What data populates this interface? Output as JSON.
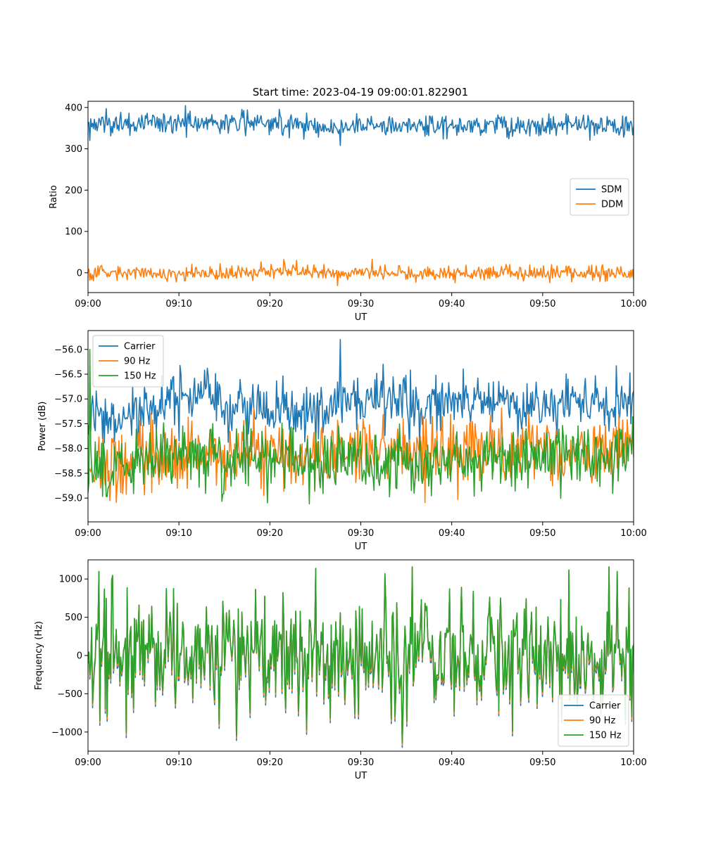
{
  "figure": {
    "title": "Start time: 2023-04-19 09:00:01.822901"
  },
  "chart_data": [
    {
      "type": "line",
      "title": "Start time: 2023-04-19 09:00:01.822901",
      "xlabel": "UT",
      "ylabel": "Ratio",
      "x_range": [
        "09:00",
        "10:00"
      ],
      "x_ticks": [
        "09:00",
        "09:10",
        "09:20",
        "09:30",
        "09:40",
        "09:50",
        "10:00"
      ],
      "ylim": [
        -48,
        415
      ],
      "y_ticks": [
        0,
        100,
        200,
        300,
        400
      ],
      "legend": "center-right",
      "grid": false,
      "series": [
        {
          "name": "SDM",
          "color": "#1f77b4",
          "x_minutes": [
            0,
            2.5,
            5,
            7.5,
            10,
            12.5,
            15,
            17.5,
            20,
            22.5,
            25,
            27.5,
            30,
            32.5,
            35,
            37.5,
            40,
            42.5,
            45,
            47.5,
            50,
            52.5,
            55,
            57.5,
            60
          ],
          "values": [
            355,
            362,
            358,
            365,
            360,
            368,
            361,
            364,
            366,
            362,
            355,
            348,
            360,
            358,
            352,
            359,
            356,
            357,
            361,
            352,
            356,
            358,
            355,
            352,
            352
          ],
          "noise": 14,
          "spike": {
            "x_minute": 27.7,
            "value": 308
          }
        },
        {
          "name": "DDM",
          "color": "#ff7f0e",
          "x_minutes": [
            0,
            7.5,
            15,
            22.5,
            30,
            37.5,
            45,
            52.5,
            60
          ],
          "values": [
            0,
            -2,
            0,
            2,
            2,
            -2,
            1,
            -1,
            -3
          ],
          "noise": 9,
          "spike": {
            "x_minute": 22.9,
            "value": 30
          }
        }
      ]
    },
    {
      "type": "line",
      "xlabel": "UT",
      "ylabel": "Power (dB)",
      "x_range": [
        "09:00",
        "10:00"
      ],
      "x_ticks": [
        "09:00",
        "09:10",
        "09:20",
        "09:30",
        "09:40",
        "09:50",
        "10:00"
      ],
      "ylim": [
        -59.48,
        -55.62
      ],
      "y_ticks": [
        -56.0,
        -56.5,
        -57.0,
        -57.5,
        -58.0,
        -58.5,
        -59.0
      ],
      "y_tick_labels": [
        "−56.0",
        "−56.5",
        "−57.0",
        "−57.5",
        "−58.0",
        "−58.5",
        "−59.0"
      ],
      "legend": "top-left",
      "grid": false,
      "series": [
        {
          "name": "Carrier",
          "color": "#1f77b4",
          "x_minutes": [
            0,
            3,
            6,
            9,
            12,
            15,
            18,
            21,
            24,
            27,
            30,
            33,
            36,
            39,
            42,
            45,
            48,
            51,
            54,
            57,
            60
          ],
          "values": [
            -57.4,
            -57.5,
            -57.3,
            -57.1,
            -57.0,
            -57.2,
            -57.1,
            -57.2,
            -57.3,
            -57.2,
            -57.1,
            -57.0,
            -57.2,
            -57.0,
            -56.9,
            -57.0,
            -57.2,
            -57.1,
            -57.0,
            -57.1,
            -57.0
          ],
          "noise": 0.28,
          "spike": {
            "x_minute": 27.7,
            "value": -55.8
          }
        },
        {
          "name": "90 Hz",
          "color": "#ff7f0e",
          "x_minutes": [
            0,
            6,
            12,
            18,
            24,
            30,
            36,
            42,
            48,
            54,
            60
          ],
          "values": [
            -58.5,
            -58.2,
            -58.1,
            -58.1,
            -58.2,
            -58.0,
            -58.1,
            -58.1,
            -58.0,
            -58.1,
            -58.0
          ],
          "noise": 0.32,
          "spike": null
        },
        {
          "name": "150 Hz",
          "color": "#2ca02c",
          "x_minutes": [
            0,
            6,
            12,
            18,
            24,
            30,
            36,
            42,
            48,
            54,
            60
          ],
          "values": [
            -58.6,
            -58.3,
            -58.1,
            -58.2,
            -58.3,
            -58.2,
            -58.3,
            -58.2,
            -58.1,
            -58.2,
            -58.1
          ],
          "noise": 0.32,
          "spike": {
            "x_minute": 0.2,
            "value": -56.0
          }
        }
      ]
    },
    {
      "type": "line",
      "xlabel": "UT",
      "ylabel": "Frequency (Hz)",
      "x_range": [
        "09:00",
        "10:00"
      ],
      "x_ticks": [
        "09:00",
        "09:10",
        "09:20",
        "09:30",
        "09:40",
        "09:50",
        "10:00"
      ],
      "ylim": [
        -1250,
        1250
      ],
      "y_ticks": [
        1000,
        500,
        0,
        -500,
        -1000
      ],
      "y_tick_labels": [
        "1000",
        "500",
        "0",
        "−500",
        "−1000"
      ],
      "legend": "bottom-right",
      "grid": false,
      "series_offset_hz": {
        "Carrier": -60,
        "90 Hz": -30,
        "150 Hz": 0
      },
      "series": [
        {
          "name": "Carrier",
          "color": "#1f77b4",
          "values": [
            0,
            0
          ],
          "x_minutes": [
            0,
            60
          ],
          "noise": 360
        },
        {
          "name": "90 Hz",
          "color": "#ff7f0e",
          "values": [
            0,
            0
          ],
          "x_minutes": [
            0,
            60
          ],
          "noise": 360
        },
        {
          "name": "150 Hz",
          "color": "#2ca02c",
          "values": [
            0,
            0
          ],
          "x_minutes": [
            0,
            60
          ],
          "noise": 360
        }
      ],
      "extremes": [
        {
          "x_minute": 34.6,
          "value": -1140
        },
        {
          "x_minute": 16.3,
          "value": -1050
        },
        {
          "x_minute": 25.0,
          "value": 1140
        },
        {
          "x_minute": 57.3,
          "value": 1160
        },
        {
          "x_minute": 35.7,
          "value": 1160
        },
        {
          "x_minute": 52.9,
          "value": 1120
        },
        {
          "x_minute": 46.7,
          "value": -990
        }
      ]
    }
  ]
}
